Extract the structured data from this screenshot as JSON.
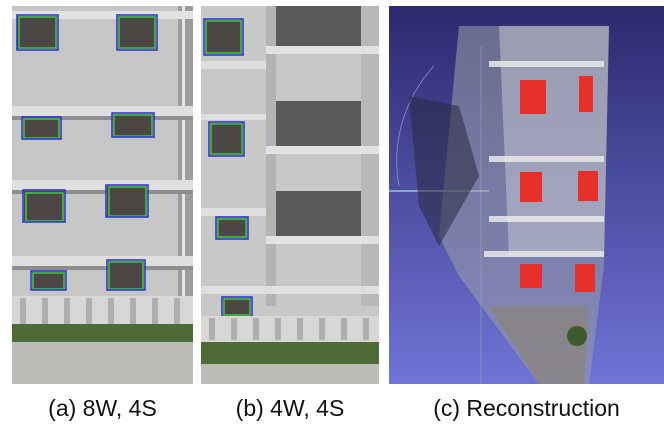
{
  "figure": {
    "panels": [
      {
        "id": "a",
        "caption": "(a) 8W, 4S"
      },
      {
        "id": "b",
        "caption": "(b) 4W, 4S"
      },
      {
        "id": "c",
        "caption": "(c) Reconstruction"
      }
    ]
  },
  "colors": {
    "detection_box_primary": "#2a2ad8",
    "detection_box_secondary": "#3cc93c",
    "reconstruction_background": "#5b5fc0",
    "reconstructed_window_highlight": "#e8302a",
    "wall": "#c9c8c8"
  }
}
